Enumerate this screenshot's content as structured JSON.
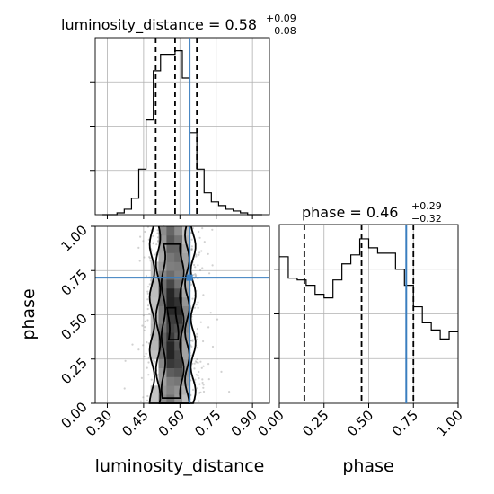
{
  "chart_data": [
    {
      "type": "histogram",
      "panel": "luminosity_distance",
      "title": {
        "param": "luminosity_distance",
        "median": "0.58",
        "plus": "+0.09",
        "minus": "−0.08"
      },
      "xlim": [
        0.25,
        0.97
      ],
      "bins_x": [
        0.28,
        0.31,
        0.34,
        0.37,
        0.4,
        0.43,
        0.46,
        0.49,
        0.52,
        0.55,
        0.58,
        0.61,
        0.64,
        0.67,
        0.7,
        0.73,
        0.76,
        0.79,
        0.82,
        0.85,
        0.88,
        0.91,
        0.94
      ],
      "counts": [
        0,
        0,
        1,
        3,
        9,
        25,
        52,
        79,
        88,
        88,
        90,
        75,
        45,
        25,
        12,
        7,
        5,
        3,
        2,
        1,
        0,
        0
      ],
      "quantiles": [
        0.5,
        0.58,
        0.67
      ],
      "truth": 0.64,
      "yticks_count": 4
    },
    {
      "type": "heatmap",
      "panel": "luminosity_distance-vs-phase",
      "xlabel": "luminosity_distance",
      "ylabel": "phase",
      "xlim": [
        0.25,
        0.97
      ],
      "ylim": [
        0.0,
        1.0
      ],
      "xticks": [
        "0.30",
        "0.45",
        "0.60",
        "0.75",
        "0.90"
      ],
      "xtick_values": [
        0.3,
        0.45,
        0.6,
        0.75,
        0.9
      ],
      "yticks": [
        "0.00",
        "0.25",
        "0.50",
        "0.75",
        "1.00"
      ],
      "ytick_values": [
        0.0,
        0.25,
        0.5,
        0.75,
        1.0
      ],
      "truth": {
        "x": 0.64,
        "y": 0.71
      },
      "density_center": {
        "x": 0.57,
        "y": 0.45
      },
      "contour_levels": 4
    },
    {
      "type": "histogram",
      "panel": "phase",
      "title": {
        "param": "phase",
        "median": "0.46",
        "plus": "+0.29",
        "minus": "−0.32"
      },
      "xlabel": "phase",
      "xlim": [
        0.0,
        1.0
      ],
      "xticks": [
        "0.00",
        "0.25",
        "0.50",
        "0.75",
        "1.00"
      ],
      "xtick_values": [
        0.0,
        0.25,
        0.5,
        0.75,
        1.0
      ],
      "bins_x": [
        0.0,
        0.05,
        0.1,
        0.15,
        0.2,
        0.25,
        0.3,
        0.35,
        0.4,
        0.45,
        0.5,
        0.55,
        0.6,
        0.65,
        0.7,
        0.75,
        0.8,
        0.85,
        0.9,
        0.95,
        1.0
      ],
      "counts": [
        0.82,
        0.7,
        0.69,
        0.66,
        0.61,
        0.59,
        0.69,
        0.78,
        0.83,
        0.92,
        0.87,
        0.84,
        0.84,
        0.75,
        0.66,
        0.54,
        0.45,
        0.41,
        0.36,
        0.4
      ],
      "quantiles": [
        0.14,
        0.46,
        0.75
      ],
      "truth": 0.71,
      "yticks_count": 4
    }
  ]
}
